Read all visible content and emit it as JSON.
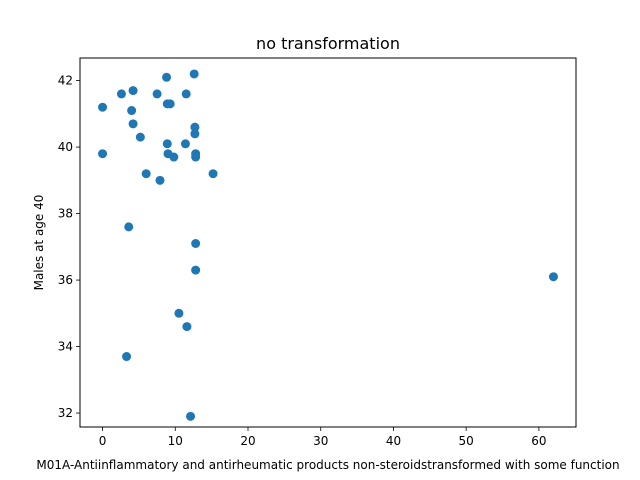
{
  "chart_data": {
    "type": "scatter",
    "title": "no transformation",
    "xlabel": "M01A-Antiinflammatory and antirheumatic products non-steroidstransformed with some function",
    "ylabel": "Males at age 40",
    "xlim": [
      -3.1,
      65.1
    ],
    "ylim": [
      31.58,
      42.68
    ],
    "xticks": [
      0,
      10,
      20,
      30,
      40,
      50,
      60
    ],
    "yticks": [
      32,
      34,
      36,
      38,
      40,
      42
    ],
    "grid": false,
    "marker_color": "#1f77b4",
    "points": [
      {
        "x": 0.0,
        "y": 41.2
      },
      {
        "x": 0.0,
        "y": 39.8
      },
      {
        "x": 2.6,
        "y": 41.6
      },
      {
        "x": 3.3,
        "y": 33.7
      },
      {
        "x": 3.6,
        "y": 37.6
      },
      {
        "x": 4.0,
        "y": 41.1
      },
      {
        "x": 4.2,
        "y": 41.7
      },
      {
        "x": 4.2,
        "y": 40.7
      },
      {
        "x": 5.2,
        "y": 40.3
      },
      {
        "x": 6.0,
        "y": 39.2
      },
      {
        "x": 7.5,
        "y": 41.6
      },
      {
        "x": 7.9,
        "y": 39.0
      },
      {
        "x": 8.8,
        "y": 42.1
      },
      {
        "x": 8.9,
        "y": 41.3
      },
      {
        "x": 8.9,
        "y": 40.1
      },
      {
        "x": 9.0,
        "y": 39.8
      },
      {
        "x": 9.3,
        "y": 41.3
      },
      {
        "x": 9.8,
        "y": 39.7
      },
      {
        "x": 10.5,
        "y": 35.0
      },
      {
        "x": 11.4,
        "y": 40.1
      },
      {
        "x": 11.5,
        "y": 41.6
      },
      {
        "x": 11.6,
        "y": 34.6
      },
      {
        "x": 12.1,
        "y": 31.9
      },
      {
        "x": 12.6,
        "y": 42.2
      },
      {
        "x": 12.7,
        "y": 40.4
      },
      {
        "x": 12.7,
        "y": 40.6
      },
      {
        "x": 12.8,
        "y": 39.8
      },
      {
        "x": 12.8,
        "y": 39.7
      },
      {
        "x": 12.8,
        "y": 37.1
      },
      {
        "x": 12.8,
        "y": 36.3
      },
      {
        "x": 15.2,
        "y": 39.2
      },
      {
        "x": 62.0,
        "y": 36.1
      }
    ]
  }
}
